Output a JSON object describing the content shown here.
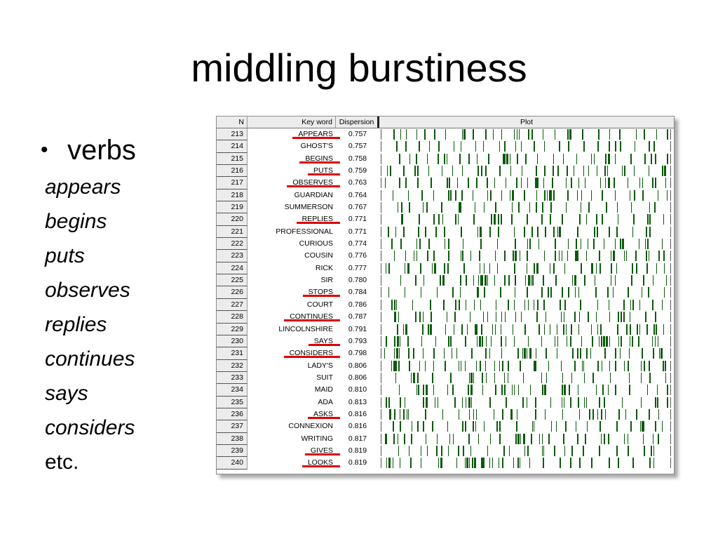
{
  "slide": {
    "title": "middling burstiness",
    "bullet_symbol": "•",
    "bullet_heading": "verbs",
    "examples": [
      "appears",
      "begins",
      "puts",
      "observes",
      "replies",
      "continues",
      "says",
      "considers"
    ],
    "etc": "etc."
  },
  "table": {
    "headers": {
      "n": "N",
      "keyword": "Key word",
      "dispersion": "Dispersion",
      "plot": "Plot"
    },
    "plot_color": "#0a5a0a",
    "highlight_color": "#e00000",
    "rows": [
      {
        "n": "213",
        "keyword": "APPEARS",
        "dispersion": "0.757",
        "underlined": true
      },
      {
        "n": "214",
        "keyword": "GHOST'S",
        "dispersion": "0.757",
        "underlined": false
      },
      {
        "n": "215",
        "keyword": "BEGINS",
        "dispersion": "0.758",
        "underlined": true
      },
      {
        "n": "216",
        "keyword": "PUTS",
        "dispersion": "0.759",
        "underlined": true
      },
      {
        "n": "217",
        "keyword": "OBSERVES",
        "dispersion": "0.763",
        "underlined": true
      },
      {
        "n": "218",
        "keyword": "GUARDIAN",
        "dispersion": "0.764",
        "underlined": false
      },
      {
        "n": "219",
        "keyword": "SUMMERSON",
        "dispersion": "0.767",
        "underlined": false
      },
      {
        "n": "220",
        "keyword": "REPLIES",
        "dispersion": "0.771",
        "underlined": true
      },
      {
        "n": "221",
        "keyword": "PROFESSIONAL",
        "dispersion": "0.771",
        "underlined": false
      },
      {
        "n": "222",
        "keyword": "CURIOUS",
        "dispersion": "0.774",
        "underlined": false
      },
      {
        "n": "223",
        "keyword": "COUSIN",
        "dispersion": "0.776",
        "underlined": false
      },
      {
        "n": "224",
        "keyword": "RICK",
        "dispersion": "0.777",
        "underlined": false
      },
      {
        "n": "225",
        "keyword": "SIR",
        "dispersion": "0.780",
        "underlined": false
      },
      {
        "n": "226",
        "keyword": "STOPS",
        "dispersion": "0.784",
        "underlined": true
      },
      {
        "n": "227",
        "keyword": "COURT",
        "dispersion": "0.786",
        "underlined": false
      },
      {
        "n": "228",
        "keyword": "CONTINUES",
        "dispersion": "0.787",
        "underlined": true
      },
      {
        "n": "229",
        "keyword": "LINCOLNSHIRE",
        "dispersion": "0.791",
        "underlined": false
      },
      {
        "n": "230",
        "keyword": "SAYS",
        "dispersion": "0.793",
        "underlined": true
      },
      {
        "n": "231",
        "keyword": "CONSIDERS",
        "dispersion": "0.798",
        "underlined": true
      },
      {
        "n": "232",
        "keyword": "LADY'S",
        "dispersion": "0.806",
        "underlined": false
      },
      {
        "n": "233",
        "keyword": "SUIT",
        "dispersion": "0.806",
        "underlined": false
      },
      {
        "n": "234",
        "keyword": "MAID",
        "dispersion": "0.810",
        "underlined": false
      },
      {
        "n": "235",
        "keyword": "ADA",
        "dispersion": "0.813",
        "underlined": false
      },
      {
        "n": "236",
        "keyword": "ASKS",
        "dispersion": "0.816",
        "underlined": true
      },
      {
        "n": "237",
        "keyword": "CONNEXION",
        "dispersion": "0.816",
        "underlined": false
      },
      {
        "n": "238",
        "keyword": "WRITING",
        "dispersion": "0.817",
        "underlined": false
      },
      {
        "n": "239",
        "keyword": "GIVES",
        "dispersion": "0.819",
        "underlined": true
      },
      {
        "n": "240",
        "keyword": "LOOKS",
        "dispersion": "0.819",
        "underlined": true
      }
    ]
  }
}
